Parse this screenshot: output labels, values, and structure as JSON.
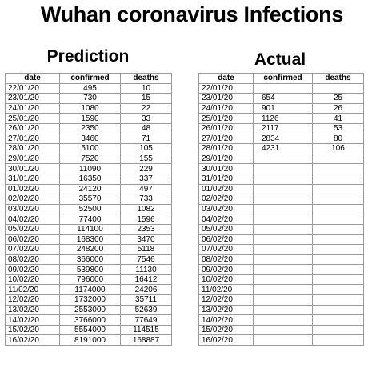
{
  "title": "Wuhan coronavirus Infections",
  "prediction": {
    "heading": "Prediction",
    "columns": [
      "date",
      "confirmed",
      "deaths"
    ],
    "rows": [
      [
        "22/01/20",
        "495",
        "10"
      ],
      [
        "23/01/20",
        "730",
        "15"
      ],
      [
        "24/01/20",
        "1080",
        "22"
      ],
      [
        "25/01/20",
        "1590",
        "33"
      ],
      [
        "26/01/20",
        "2350",
        "48"
      ],
      [
        "27/01/20",
        "3460",
        "71"
      ],
      [
        "28/01/20",
        "5100",
        "105"
      ],
      [
        "29/01/20",
        "7520",
        "155"
      ],
      [
        "30/01/20",
        "11090",
        "229"
      ],
      [
        "31/01/20",
        "16350",
        "337"
      ],
      [
        "01/02/20",
        "24120",
        "497"
      ],
      [
        "02/02/20",
        "35570",
        "733"
      ],
      [
        "03/02/20",
        "52500",
        "1082"
      ],
      [
        "04/02/20",
        "77400",
        "1596"
      ],
      [
        "05/02/20",
        "114100",
        "2353"
      ],
      [
        "06/02/20",
        "168300",
        "3470"
      ],
      [
        "07/02/20",
        "248200",
        "5118"
      ],
      [
        "08/02/20",
        "366000",
        "7546"
      ],
      [
        "09/02/20",
        "539800",
        "11130"
      ],
      [
        "10/02/20",
        "796000",
        "16412"
      ],
      [
        "11/02/20",
        "1174000",
        "24206"
      ],
      [
        "12/02/20",
        "1732000",
        "35711"
      ],
      [
        "13/02/20",
        "2553000",
        "52639"
      ],
      [
        "14/02/20",
        "3766000",
        "77649"
      ],
      [
        "15/02/20",
        "5554000",
        "114515"
      ],
      [
        "16/02/20",
        "8191000",
        "168887"
      ]
    ]
  },
  "actual": {
    "heading": "Actual",
    "columns": [
      "date",
      "confirmed",
      "deaths"
    ],
    "rows": [
      [
        "22/01/20",
        "",
        ""
      ],
      [
        "23/01/20",
        "654",
        "25"
      ],
      [
        "24/01/20",
        "901",
        "26"
      ],
      [
        "25/01/20",
        "1126",
        "41"
      ],
      [
        "26/01/20",
        "2117",
        "53"
      ],
      [
        "27/01/20",
        "2834",
        "80"
      ],
      [
        "28/01/20",
        "4231",
        "106"
      ],
      [
        "29/01/20",
        "",
        ""
      ],
      [
        "30/01/20",
        "",
        ""
      ],
      [
        "31/01/20",
        "",
        ""
      ],
      [
        "01/02/20",
        "",
        ""
      ],
      [
        "02/02/20",
        "",
        ""
      ],
      [
        "03/02/20",
        "",
        ""
      ],
      [
        "04/02/20",
        "",
        ""
      ],
      [
        "05/02/20",
        "",
        ""
      ],
      [
        "06/02/20",
        "",
        ""
      ],
      [
        "07/02/20",
        "",
        ""
      ],
      [
        "08/02/20",
        "",
        ""
      ],
      [
        "09/02/20",
        "",
        ""
      ],
      [
        "10/02/20",
        "",
        ""
      ],
      [
        "11/02/20",
        "",
        ""
      ],
      [
        "12/02/20",
        "",
        ""
      ],
      [
        "13/02/20",
        "",
        ""
      ],
      [
        "14/02/20",
        "",
        ""
      ],
      [
        "15/02/20",
        "",
        ""
      ],
      [
        "16/02/20",
        "",
        ""
      ]
    ]
  }
}
